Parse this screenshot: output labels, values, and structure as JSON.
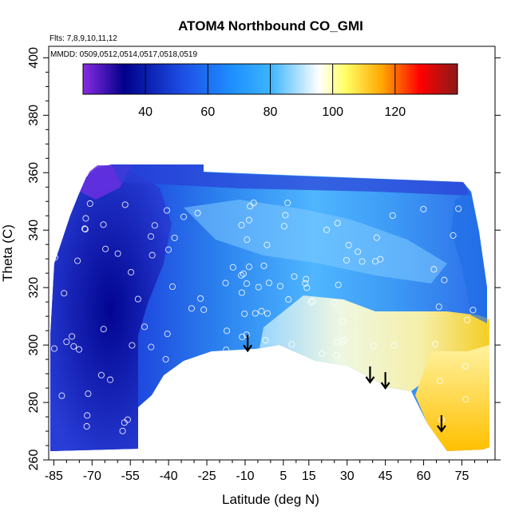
{
  "chart_data": {
    "type": "heatmap",
    "title": "ATOM4 Northbound CO_GMI",
    "annotations": [
      "Flts: 7,8,9,10,11,12",
      "MMDD: 0509,0512,0514,0517,0518,0519"
    ],
    "xlabel": "Latitude (deg N)",
    "ylabel": "Theta (C)",
    "xlim": [
      -87,
      88
    ],
    "ylim": [
      260,
      404
    ],
    "xticks": [
      -85,
      -70,
      -55,
      -40,
      -25,
      -10,
      5,
      15,
      30,
      45,
      60,
      75
    ],
    "xtick_labels": [
      "-85",
      "-70",
      "-55",
      "-40",
      "-25",
      "-10",
      "5",
      "15",
      "30",
      "45",
      "60",
      "75"
    ],
    "yticks": [
      260,
      280,
      300,
      320,
      340,
      360,
      380,
      400
    ],
    "ytick_labels": [
      "260",
      "280",
      "300",
      "320",
      "340",
      "360",
      "380",
      "400"
    ],
    "colorbar": {
      "range": [
        20,
        140
      ],
      "ticks": [
        40,
        60,
        80,
        100,
        120
      ],
      "tick_labels": [
        "40",
        "60",
        "80",
        "100",
        "120"
      ],
      "colors": [
        "#8a2be2",
        "#00008b",
        "#1e50e6",
        "#1e90ff",
        "#3cb4ff",
        "#ffffff",
        "#ffff66",
        "#ffa500",
        "#ff0000",
        "#8b1a1a"
      ]
    },
    "arrows": [
      {
        "lat": -9,
        "theta": 298
      },
      {
        "lat": 39,
        "theta": 287
      },
      {
        "lat": 45,
        "theta": 285
      },
      {
        "lat": 67,
        "theta": 270
      }
    ],
    "grid": false,
    "legend": "none"
  }
}
